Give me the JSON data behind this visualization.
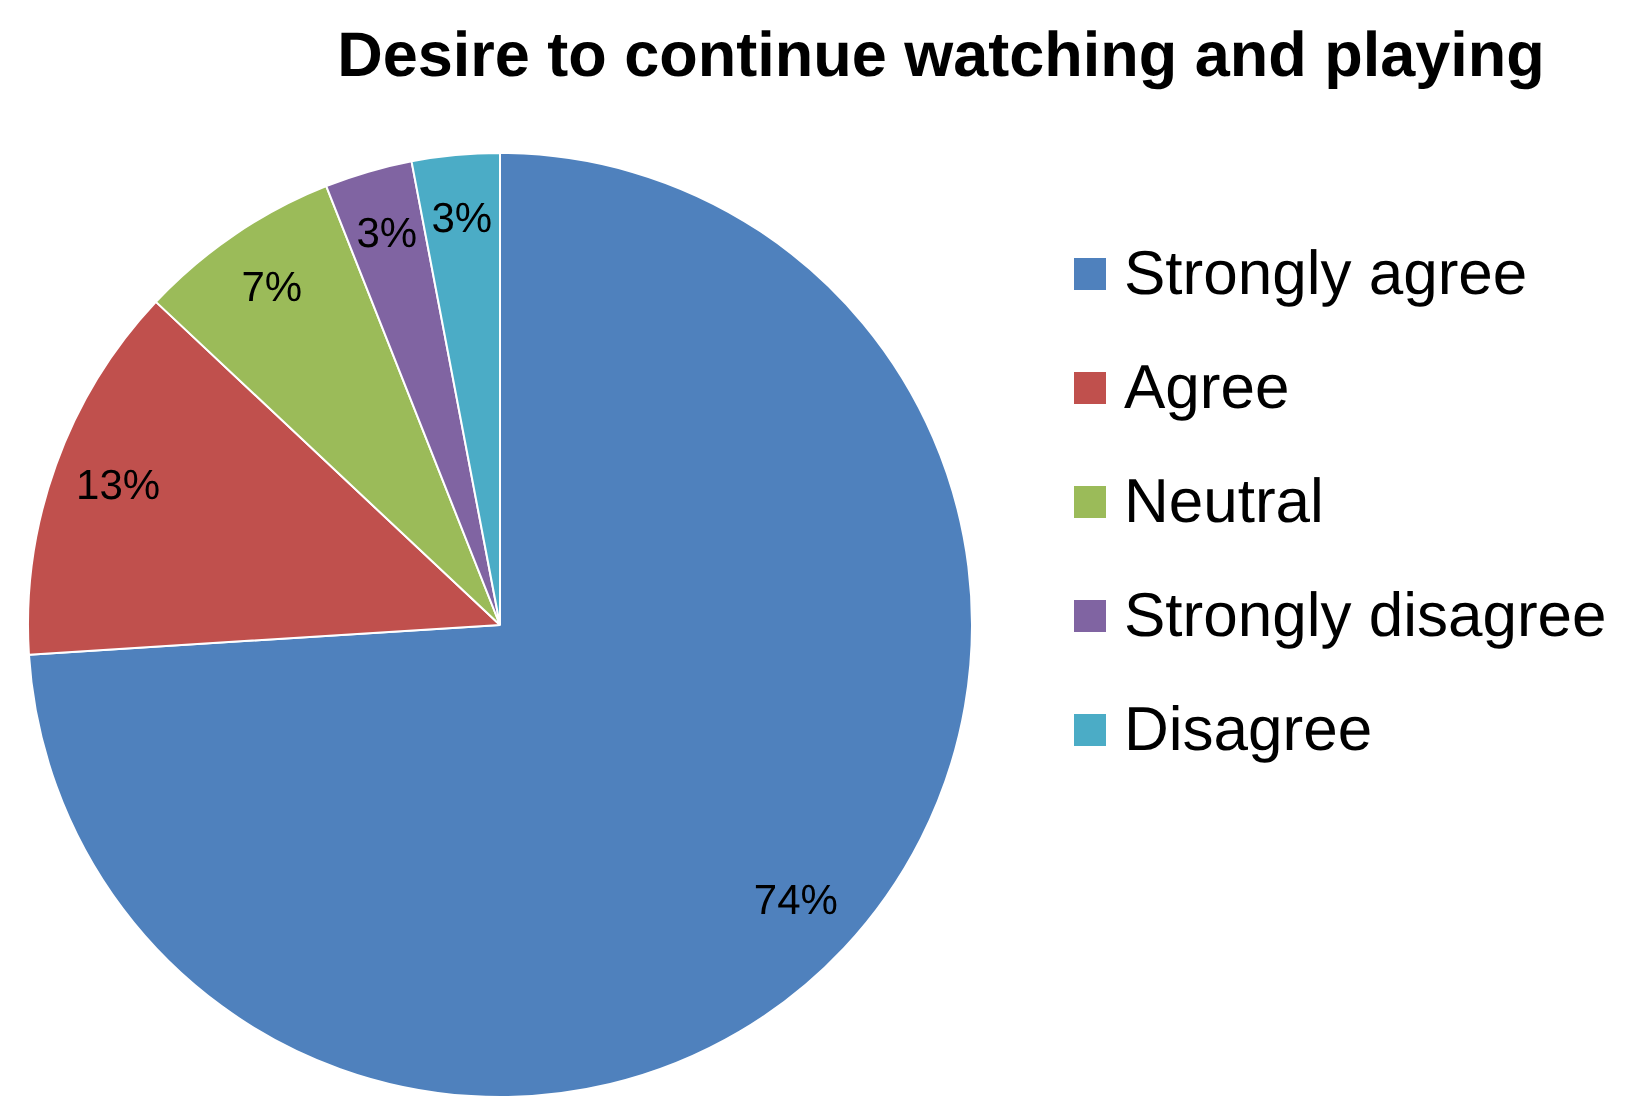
{
  "chart_data": {
    "type": "pie",
    "title": "Desire to continue watching and playing",
    "categories": [
      "Strongly agree",
      "Agree",
      "Neutral",
      "Strongly disagree",
      "Disagree"
    ],
    "values": [
      74,
      13,
      7,
      3,
      3
    ],
    "colors": [
      "#4f81bd",
      "#c0504d",
      "#9bbb59",
      "#8064a2",
      "#4bacc6"
    ],
    "value_labels": [
      "74%",
      "13%",
      "7%",
      "3%",
      "3%"
    ],
    "legend": "right"
  }
}
